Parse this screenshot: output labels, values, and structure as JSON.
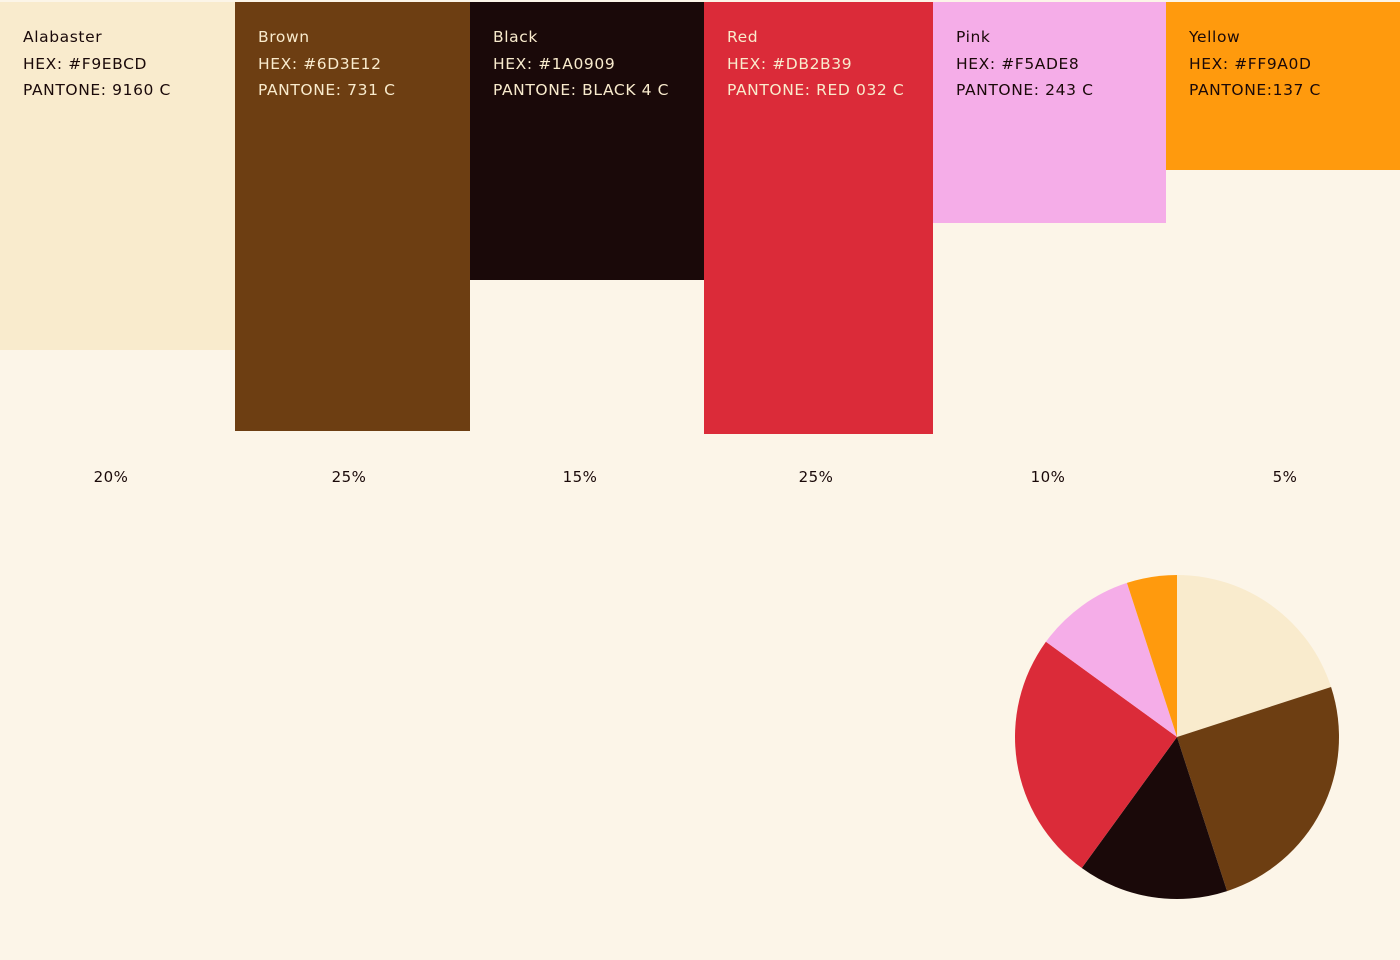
{
  "chart_data": {
    "type": "bar",
    "title": "",
    "categories": [
      "Alabaster",
      "Brown",
      "Black",
      "Red",
      "Pink",
      "Yellow"
    ],
    "values": [
      20,
      25,
      15,
      25,
      10,
      5
    ],
    "unit": "%",
    "swatches": [
      {
        "name": "Alabaster",
        "hex_label": "HEX: #F9EBCD",
        "pantone_label": "PANTONE: 9160 C",
        "percent_label": "20%",
        "value": 20,
        "color": "#F9EBCD",
        "text_color": "#1A0909"
      },
      {
        "name": "Brown",
        "hex_label": "HEX: #6D3E12",
        "pantone_label": "PANTONE: 731 C",
        "percent_label": "25%",
        "value": 25,
        "color": "#6D3E12",
        "text_color": "#F9EBCD"
      },
      {
        "name": "Black",
        "hex_label": "HEX: #1A0909",
        "pantone_label": "PANTONE: BLACK 4 C",
        "percent_label": "15%",
        "value": 15,
        "color": "#1A0909",
        "text_color": "#F9EBCD"
      },
      {
        "name": "Red",
        "hex_label": "HEX: #DB2B39",
        "pantone_label": "PANTONE: RED 032 C",
        "percent_label": "25%",
        "value": 25,
        "color": "#DB2B39",
        "text_color": "#F9EBCD"
      },
      {
        "name": "Pink",
        "hex_label": "HEX: #F5ADE8",
        "pantone_label": "PANTONE: 243 C",
        "percent_label": "10%",
        "value": 10,
        "color": "#F5ADE8",
        "text_color": "#1A0909"
      },
      {
        "name": "Yellow",
        "hex_label": "HEX: #FF9A0D",
        "pantone_label": "PANTONE:137 C",
        "percent_label": "5%",
        "value": 5,
        "color": "#FF9A0D",
        "text_color": "#1A0909"
      }
    ],
    "pie": {
      "type": "pie",
      "values": [
        20,
        25,
        15,
        25,
        10,
        5
      ],
      "colors": [
        "#F9EBCD",
        "#6D3E12",
        "#1A0909",
        "#DB2B39",
        "#F5ADE8",
        "#FF9A0D"
      ]
    }
  }
}
